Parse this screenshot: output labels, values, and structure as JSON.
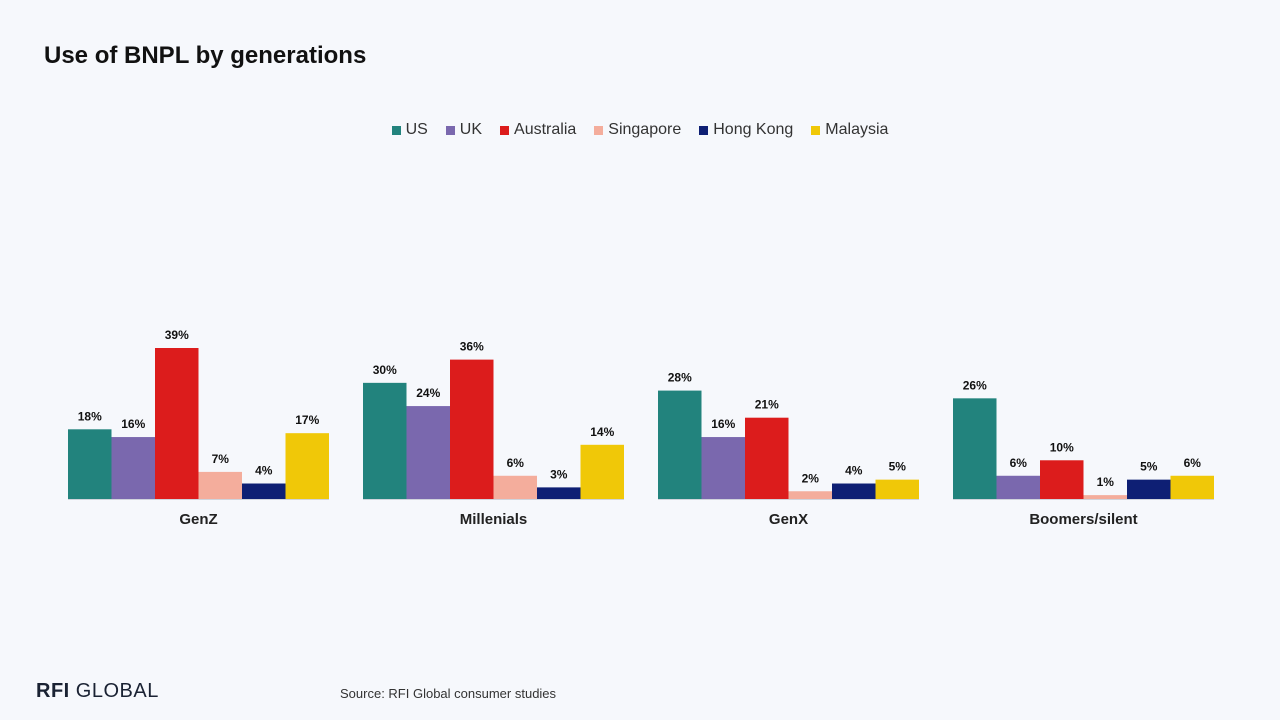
{
  "title": "Use of BNPL by generations",
  "logo": {
    "bold": "RFI",
    "rest": "GLOBAL"
  },
  "source": "Source: RFI Global consumer studies",
  "chart_data": {
    "type": "bar",
    "categories": [
      "GenZ",
      "Millenials",
      "GenX",
      "Boomers/silent"
    ],
    "series": [
      {
        "name": "US",
        "color": "#22837d",
        "values": [
          18,
          30,
          28,
          26
        ],
        "labels": [
          "18%",
          "30%",
          "28%",
          "26%"
        ]
      },
      {
        "name": "UK",
        "color": "#7a68ae",
        "values": [
          16,
          24,
          16,
          6
        ],
        "labels": [
          "16%",
          "24%",
          "16%",
          "6%"
        ]
      },
      {
        "name": "Australia",
        "color": "#dc1c1c",
        "values": [
          39,
          36,
          21,
          10
        ],
        "labels": [
          "39%",
          "36%",
          "21%",
          "10%"
        ]
      },
      {
        "name": "Singapore",
        "color": "#f4ad9c",
        "values": [
          7,
          6,
          2,
          1
        ],
        "labels": [
          "7%",
          "6%",
          "2%",
          "1%"
        ]
      },
      {
        "name": "Hong Kong",
        "color": "#0e1f74",
        "values": [
          4,
          3,
          4,
          5
        ],
        "labels": [
          "4%",
          "3%",
          "4%",
          "5%"
        ]
      },
      {
        "name": "Malaysia",
        "color": "#f0c808",
        "values": [
          17,
          14,
          5,
          6
        ],
        "labels": [
          "17%",
          "14%",
          "5%",
          "6%"
        ]
      }
    ],
    "ylim": [
      0,
      40
    ],
    "legend_position": "top-center",
    "grid": false
  }
}
